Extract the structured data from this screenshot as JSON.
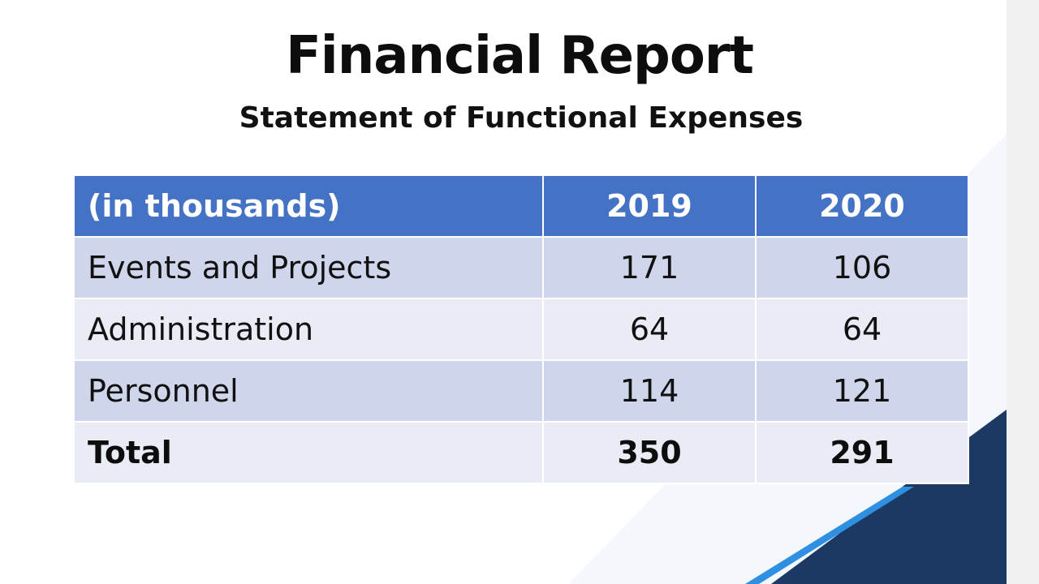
{
  "slide": {
    "title": "Financial Report",
    "subtitle": "Statement of Functional Expenses"
  },
  "table": {
    "headers": [
      "(in thousands)",
      "2019",
      "2020"
    ],
    "rows": [
      {
        "label": "Events and Projects",
        "y2019": "171",
        "y2020": "106"
      },
      {
        "label": "Administration",
        "y2019": "64",
        "y2020": "64"
      },
      {
        "label": "Personnel",
        "y2019": "114",
        "y2020": "121"
      },
      {
        "label": "Total",
        "y2019": "350",
        "y2020": "291"
      }
    ]
  },
  "colors": {
    "header_bg": "#4472c4",
    "row_dark": "#cfd5ea",
    "row_light": "#e9ebf5",
    "accent_navy": "#1b3963",
    "accent_blue": "#2f8fe0"
  }
}
